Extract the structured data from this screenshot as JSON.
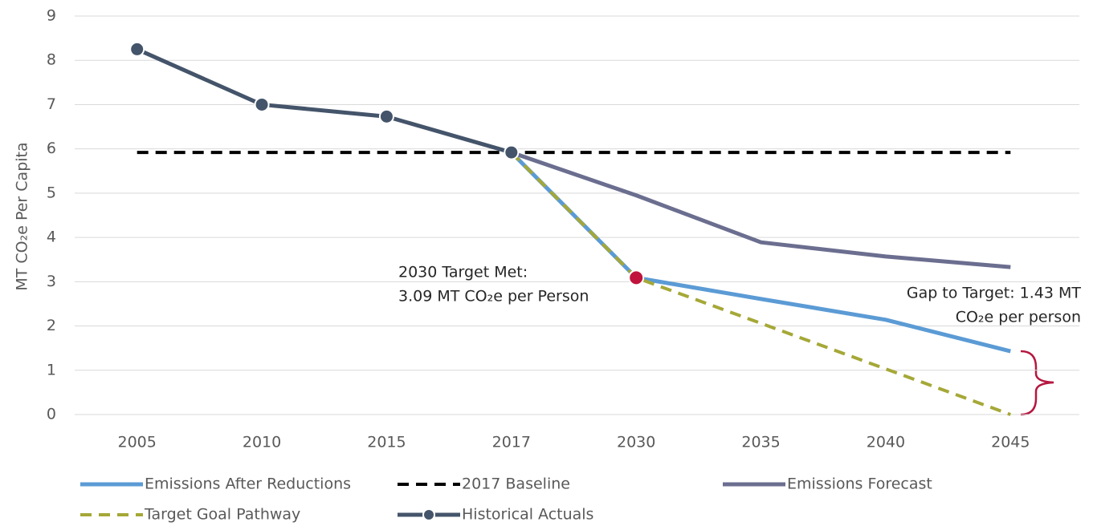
{
  "chart_data": {
    "type": "line",
    "y_label": "MT CO₂e Per Capita",
    "categories": [
      "2005",
      "2010",
      "2015",
      "2017",
      "2030",
      "2035",
      "2040",
      "2045"
    ],
    "ylim": [
      0,
      9
    ],
    "yticks": [
      0,
      1,
      2,
      3,
      4,
      5,
      6,
      7,
      8,
      9
    ],
    "grid": true,
    "legend": "bottom",
    "series": [
      {
        "name": "Emissions After Reductions",
        "color": "#5b9bd5",
        "dash": false,
        "marker": false,
        "values": [
          null,
          null,
          null,
          5.92,
          3.09,
          2.61,
          2.14,
          1.43
        ]
      },
      {
        "name": "2017 Baseline",
        "color": "#000000",
        "dash": true,
        "marker": false,
        "values": [
          5.92,
          5.92,
          5.92,
          5.92,
          5.92,
          5.92,
          5.92,
          5.92
        ]
      },
      {
        "name": "Emissions Forecast",
        "color": "#6b6e8f",
        "dash": false,
        "marker": false,
        "values": [
          null,
          null,
          null,
          5.92,
          4.95,
          3.89,
          3.57,
          3.33
        ]
      },
      {
        "name": "Target Goal Pathway",
        "color": "#a5a837",
        "dash": true,
        "marker": false,
        "values": [
          null,
          null,
          null,
          5.92,
          3.09,
          2.06,
          1.03,
          0
        ]
      },
      {
        "name": "Historical Actuals",
        "color": "#44546a",
        "dash": false,
        "marker": true,
        "values": [
          8.25,
          7.0,
          6.73,
          5.92,
          null,
          null,
          null,
          null
        ]
      }
    ],
    "annotations": [
      {
        "lines": [
          "2030 Target Met:",
          "3.09 MT CO₂e per Person"
        ],
        "color": "#c0143c"
      },
      {
        "lines": [
          "Gap to Target: 1.43 MT",
          "CO₂e per person"
        ]
      }
    ]
  }
}
